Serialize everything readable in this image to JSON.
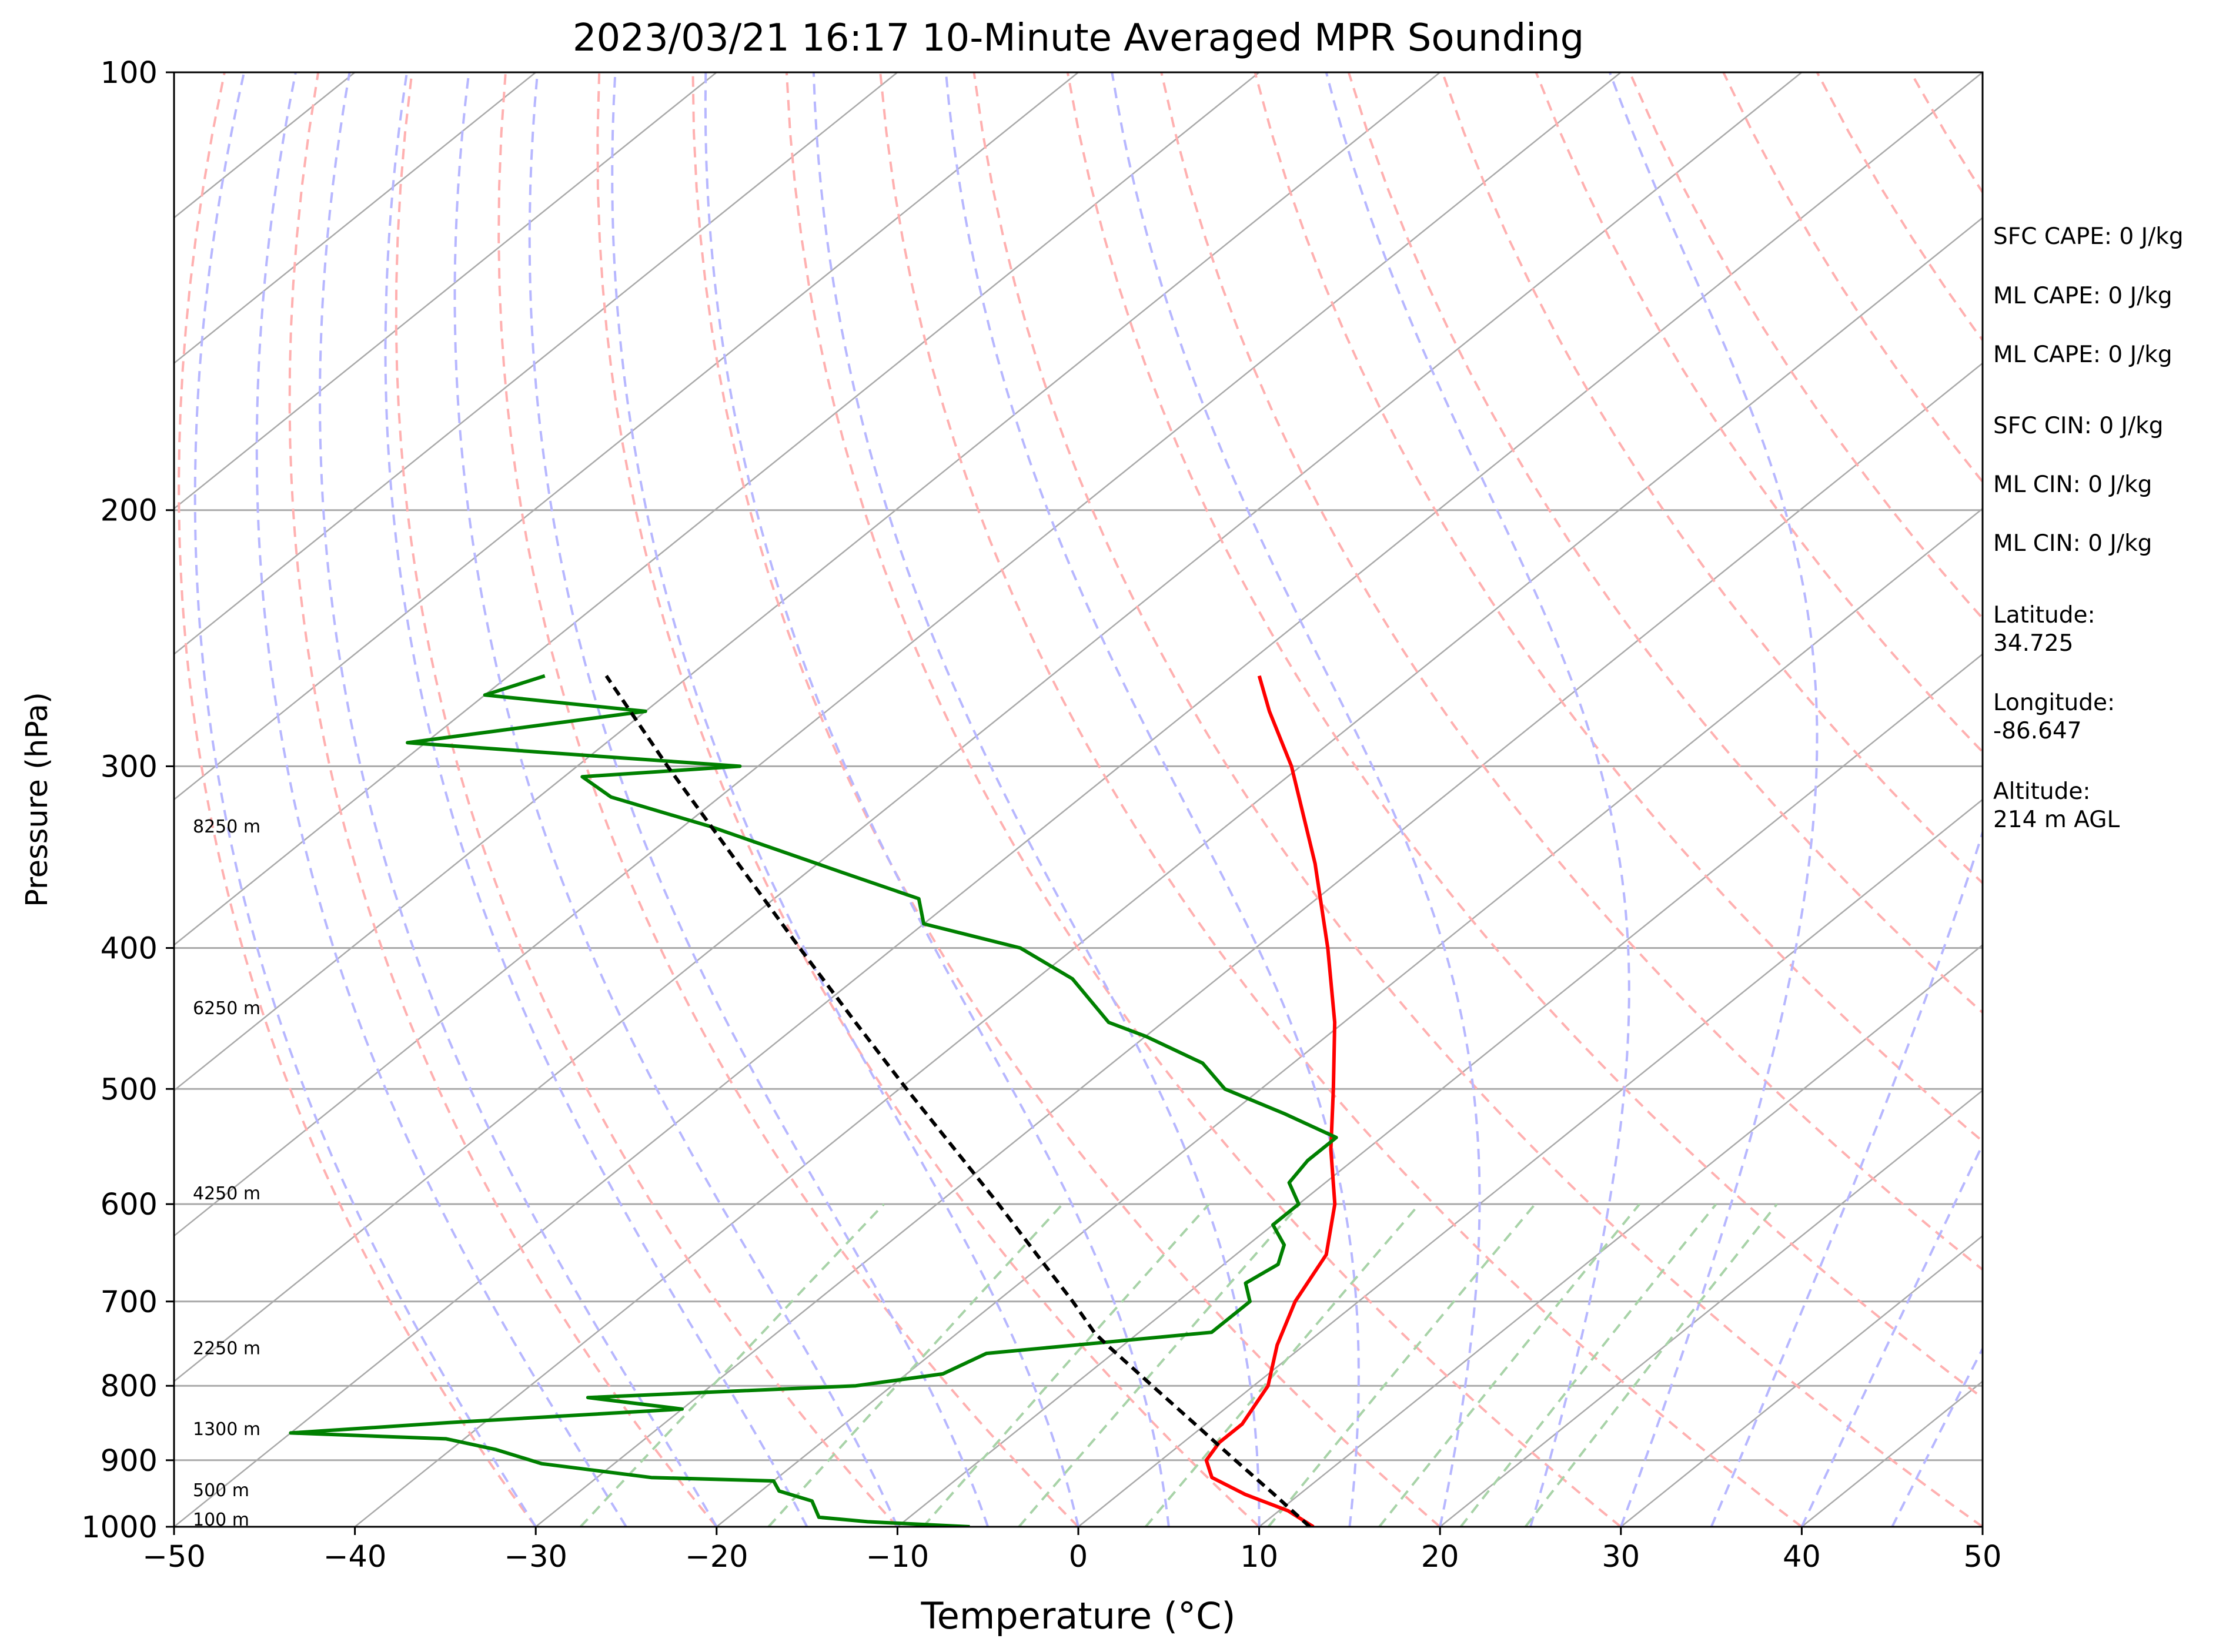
{
  "title": "2023/03/21 16:17 10-Minute Averaged MPR Sounding",
  "chart_data": {
    "type": "line",
    "diagram": "skew-T log-P",
    "xlabel": "Temperature (°C)",
    "ylabel": "Pressure (hPa)",
    "xlim": [
      -50,
      50
    ],
    "ylim": [
      1000,
      100
    ],
    "y_scale": "log",
    "x_ticks": [
      -50,
      -40,
      -30,
      -20,
      -10,
      0,
      10,
      20,
      30,
      40,
      50
    ],
    "x_tick_labels": [
      "−50",
      "−40",
      "−30",
      "−20",
      "−10",
      "0",
      "10",
      "20",
      "30",
      "40",
      "50"
    ],
    "y_ticks": [
      1000,
      900,
      800,
      700,
      600,
      500,
      400,
      300,
      200,
      100
    ],
    "y_tick_labels": [
      "1000",
      "900",
      "800",
      "700",
      "600",
      "500",
      "400",
      "300",
      "200",
      "100"
    ],
    "grid": true,
    "colors": {
      "temperature": "#ff0000",
      "dewpoint": "#008000",
      "parcel": "#000000",
      "isotherm": "#a9a9a9",
      "dry_adiabat": "#ffb0b0",
      "moist_adiabat": "#b7b7ff",
      "mixing_ratio": "#a8d3a8"
    },
    "series": [
      {
        "key": "temperature",
        "style": "solid",
        "points": [
          [
            1000,
            13.0
          ],
          [
            975,
            10.5
          ],
          [
            950,
            7.0
          ],
          [
            925,
            4.0
          ],
          [
            900,
            2.5
          ],
          [
            875,
            2.0
          ],
          [
            850,
            2.0
          ],
          [
            800,
            0.8
          ],
          [
            750,
            -1.5
          ],
          [
            700,
            -3.5
          ],
          [
            650,
            -5.0
          ],
          [
            600,
            -8.0
          ],
          [
            550,
            -12.0
          ],
          [
            500,
            -16.0
          ],
          [
            450,
            -20.5
          ],
          [
            400,
            -26.0
          ],
          [
            350,
            -32.5
          ],
          [
            300,
            -40.5
          ],
          [
            275,
            -45.5
          ],
          [
            260,
            -48.5
          ]
        ]
      },
      {
        "key": "dewpoint",
        "style": "solid",
        "points": [
          [
            1000,
            -6.0
          ],
          [
            992,
            -12.0
          ],
          [
            985,
            -15.0
          ],
          [
            960,
            -16.5
          ],
          [
            945,
            -19.0
          ],
          [
            930,
            -20.0
          ],
          [
            925,
            -27.0
          ],
          [
            905,
            -34.0
          ],
          [
            885,
            -37.5
          ],
          [
            870,
            -41.0
          ],
          [
            862,
            -50.0
          ],
          [
            848,
            -42.0
          ],
          [
            830,
            -30.0
          ],
          [
            815,
            -36.0
          ],
          [
            800,
            -22.0
          ],
          [
            785,
            -18.0
          ],
          [
            760,
            -17.0
          ],
          [
            735,
            -6.0
          ],
          [
            700,
            -6.0
          ],
          [
            680,
            -7.5
          ],
          [
            660,
            -7.0
          ],
          [
            640,
            -8.0
          ],
          [
            620,
            -10.0
          ],
          [
            600,
            -10.0
          ],
          [
            580,
            -12.0
          ],
          [
            560,
            -12.5
          ],
          [
            540,
            -12.5
          ],
          [
            520,
            -17.0
          ],
          [
            500,
            -22.0
          ],
          [
            480,
            -25.0
          ],
          [
            460,
            -30.0
          ],
          [
            450,
            -33.0
          ],
          [
            420,
            -38.0
          ],
          [
            400,
            -43.0
          ],
          [
            385,
            -50.0
          ],
          [
            370,
            -52.0
          ],
          [
            355,
            -58.0
          ],
          [
            330,
            -68.5
          ],
          [
            315,
            -76.0
          ],
          [
            305,
            -79.0
          ],
          [
            300,
            -71.0
          ],
          [
            289,
            -91.0
          ],
          [
            275,
            -80.0
          ],
          [
            268,
            -90.0
          ],
          [
            260,
            -88.0
          ]
        ]
      },
      {
        "key": "parcel",
        "style": "dashed",
        "points": [
          [
            1000,
            12.8
          ],
          [
            950,
            8.6
          ],
          [
            900,
            4.1
          ],
          [
            850,
            -0.6
          ],
          [
            800,
            -5.6
          ],
          [
            750,
            -10.9
          ],
          [
            736,
            -12.4
          ],
          [
            700,
            -15.8
          ],
          [
            650,
            -21.0
          ],
          [
            600,
            -26.6
          ],
          [
            550,
            -32.8
          ],
          [
            500,
            -39.6
          ],
          [
            450,
            -47.0
          ],
          [
            400,
            -55.2
          ],
          [
            350,
            -64.4
          ],
          [
            300,
            -75.0
          ],
          [
            260,
            -84.6
          ]
        ]
      }
    ],
    "height_labels": [
      {
        "text": "100 m",
        "p": 989
      },
      {
        "text": "500 m",
        "p": 944
      },
      {
        "text": "1300 m",
        "p": 857
      },
      {
        "text": "2250 m",
        "p": 754
      },
      {
        "text": "4250 m",
        "p": 590
      },
      {
        "text": "6250 m",
        "p": 440
      },
      {
        "text": "8250 m",
        "p": 330
      }
    ],
    "annotations": [
      "SFC CAPE: 0 J/kg",
      "ML CAPE: 0 J/kg",
      "ML CAPE: 0 J/kg",
      "SFC CIN: 0 J/kg",
      "ML CIN: 0 J/kg",
      "ML CIN: 0 J/kg",
      "Latitude:\n34.725",
      "Longitude:\n-86.647",
      "Altitude:\n214 m AGL"
    ]
  },
  "info": {
    "sfc_cape": "SFC CAPE: 0 J/kg",
    "ml_cape_1": "ML CAPE: 0 J/kg",
    "ml_cape_2": "ML CAPE: 0 J/kg",
    "sfc_cin": "SFC CIN: 0 J/kg",
    "ml_cin_1": "ML CIN: 0 J/kg",
    "ml_cin_2": "ML CIN: 0 J/kg",
    "latitude_label": "Latitude:",
    "latitude_value": "34.725",
    "longitude_label": "Longitude:",
    "longitude_value": "-86.647",
    "altitude_label": "Altitude:",
    "altitude_value": "214 m AGL"
  }
}
